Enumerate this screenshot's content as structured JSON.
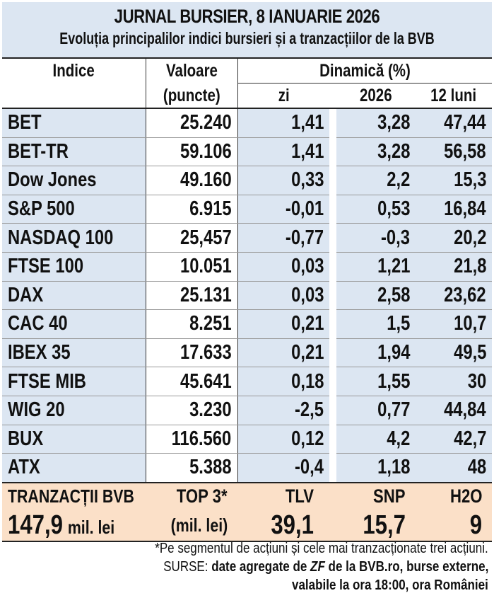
{
  "title": "JURNAL BURSIER, 8 IANUARIE 2026",
  "subtitle": "Evoluția principalilor indici bursieri și a tranzacțiilor de la BVB",
  "headers": {
    "indice": "Indice",
    "valoare": "Valoare",
    "puncte": "(puncte)",
    "dinamica": "Dinamică (%)",
    "zi": "zi",
    "an": "2026",
    "luni": "12 luni"
  },
  "rows": [
    {
      "name": "BET",
      "value": "25.240",
      "zi": "1,41",
      "an": "3,28",
      "luni": "47,44"
    },
    {
      "name": "BET-TR",
      "value": "59.106",
      "zi": "1,41",
      "an": "3,28",
      "luni": "56,58"
    },
    {
      "name": "Dow Jones",
      "value": "49.160",
      "zi": "0,33",
      "an": "2,2",
      "luni": "15,3"
    },
    {
      "name": "S&P 500",
      "value": "6.915",
      "zi": "-0,01",
      "an": "0,53",
      "luni": "16,84"
    },
    {
      "name": "NASDAQ 100",
      "value": "25,457",
      "zi": "-0,77",
      "an": "-0,3",
      "luni": "20,2"
    },
    {
      "name": "FTSE 100",
      "value": "10.051",
      "zi": "0,03",
      "an": "1,21",
      "luni": "21,8"
    },
    {
      "name": "DAX",
      "value": "25.131",
      "zi": "0,03",
      "an": "2,58",
      "luni": "23,62"
    },
    {
      "name": "CAC 40",
      "value": "8.251",
      "zi": "0,21",
      "an": "1,5",
      "luni": "10,7"
    },
    {
      "name": "IBEX 35",
      "value": "17.633",
      "zi": "0,21",
      "an": "1,94",
      "luni": "49,5"
    },
    {
      "name": "FTSE MIB",
      "value": "45.641",
      "zi": "0,18",
      "an": "1,55",
      "luni": "30"
    },
    {
      "name": "WIG 20",
      "value": "3.230",
      "zi": "-2,5",
      "an": "0,77",
      "luni": "44,84"
    },
    {
      "name": "BUX",
      "value": "116.560",
      "zi": "0,12",
      "an": "4,2",
      "luni": "42,7"
    },
    {
      "name": "ATX",
      "value": "5.388",
      "zi": "-0,4",
      "an": "1,18",
      "luni": "48"
    }
  ],
  "bvb": {
    "label": "TRANZACȚII BVB",
    "total_num": "147,9",
    "total_unit": "mil. lei",
    "top_label": "TOP 3*",
    "top_unit": "(mil. lei)",
    "top": [
      {
        "symbol": "TLV",
        "value": "39,1"
      },
      {
        "symbol": "SNP",
        "value": "15,7"
      },
      {
        "symbol": "H2O",
        "value": "9"
      }
    ]
  },
  "footer": {
    "note": "*Pe segmentul de acțiuni și cele mai tranzacționate trei acțiuni.",
    "sources_label": "SURSE: ",
    "sources_a": "date agregate de ",
    "sources_zf": "ZF",
    "sources_b": " de la BVB.ro, burse externe,",
    "sources_line2": "valabile la ora 18:00, ora României"
  }
}
